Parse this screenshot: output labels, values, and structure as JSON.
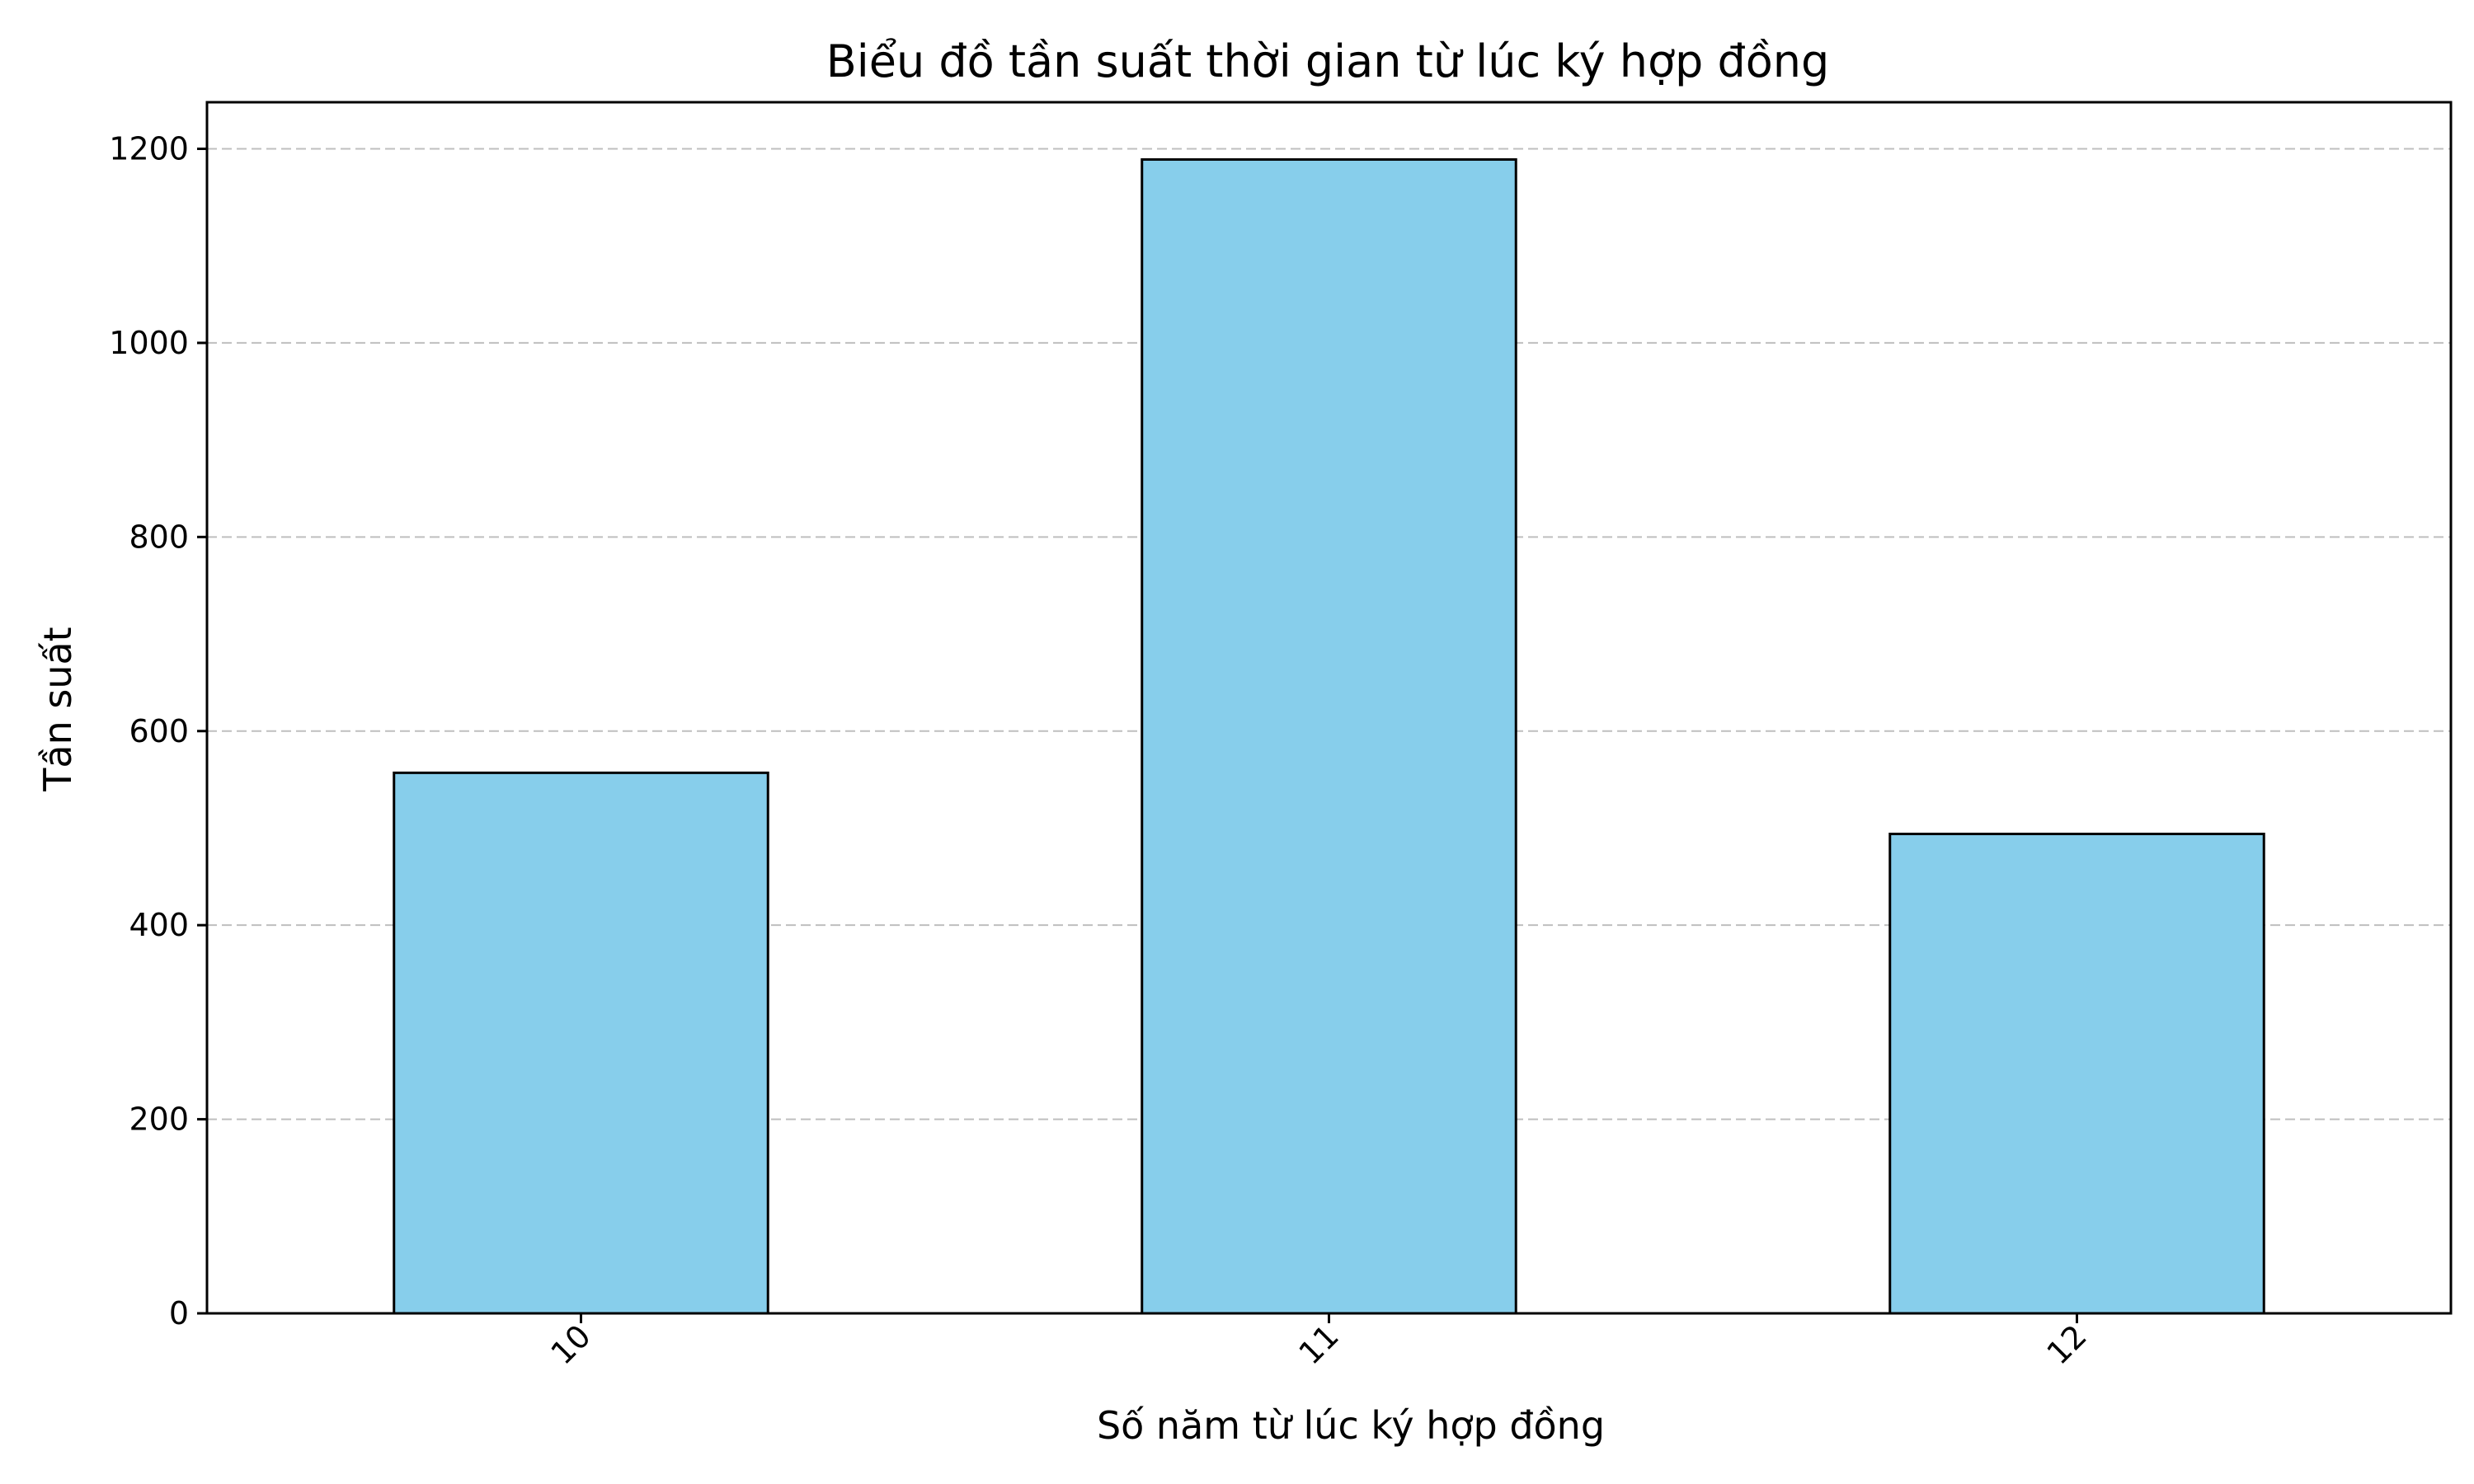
{
  "chart_data": {
    "type": "bar",
    "title": "Biểu đồ tần suất thời gian từ lúc ký hợp đồng",
    "xlabel": "Số năm từ lúc ký hợp đồng",
    "ylabel": "Tần suất",
    "categories": [
      "10",
      "11",
      "12"
    ],
    "values": [
      557,
      1189,
      494
    ],
    "ylim": [
      0,
      1248
    ],
    "yticks": [
      0,
      200,
      400,
      600,
      800,
      1000,
      1200
    ],
    "grid": true,
    "grid_axis": "y",
    "grid_style": "dashed",
    "x_tick_rotation": 45,
    "legend": "none",
    "colors": {
      "bar_fill": "#87CEEB",
      "bar_edge": "#000000",
      "grid": "#bfbfbf",
      "axes": "#000000"
    }
  }
}
